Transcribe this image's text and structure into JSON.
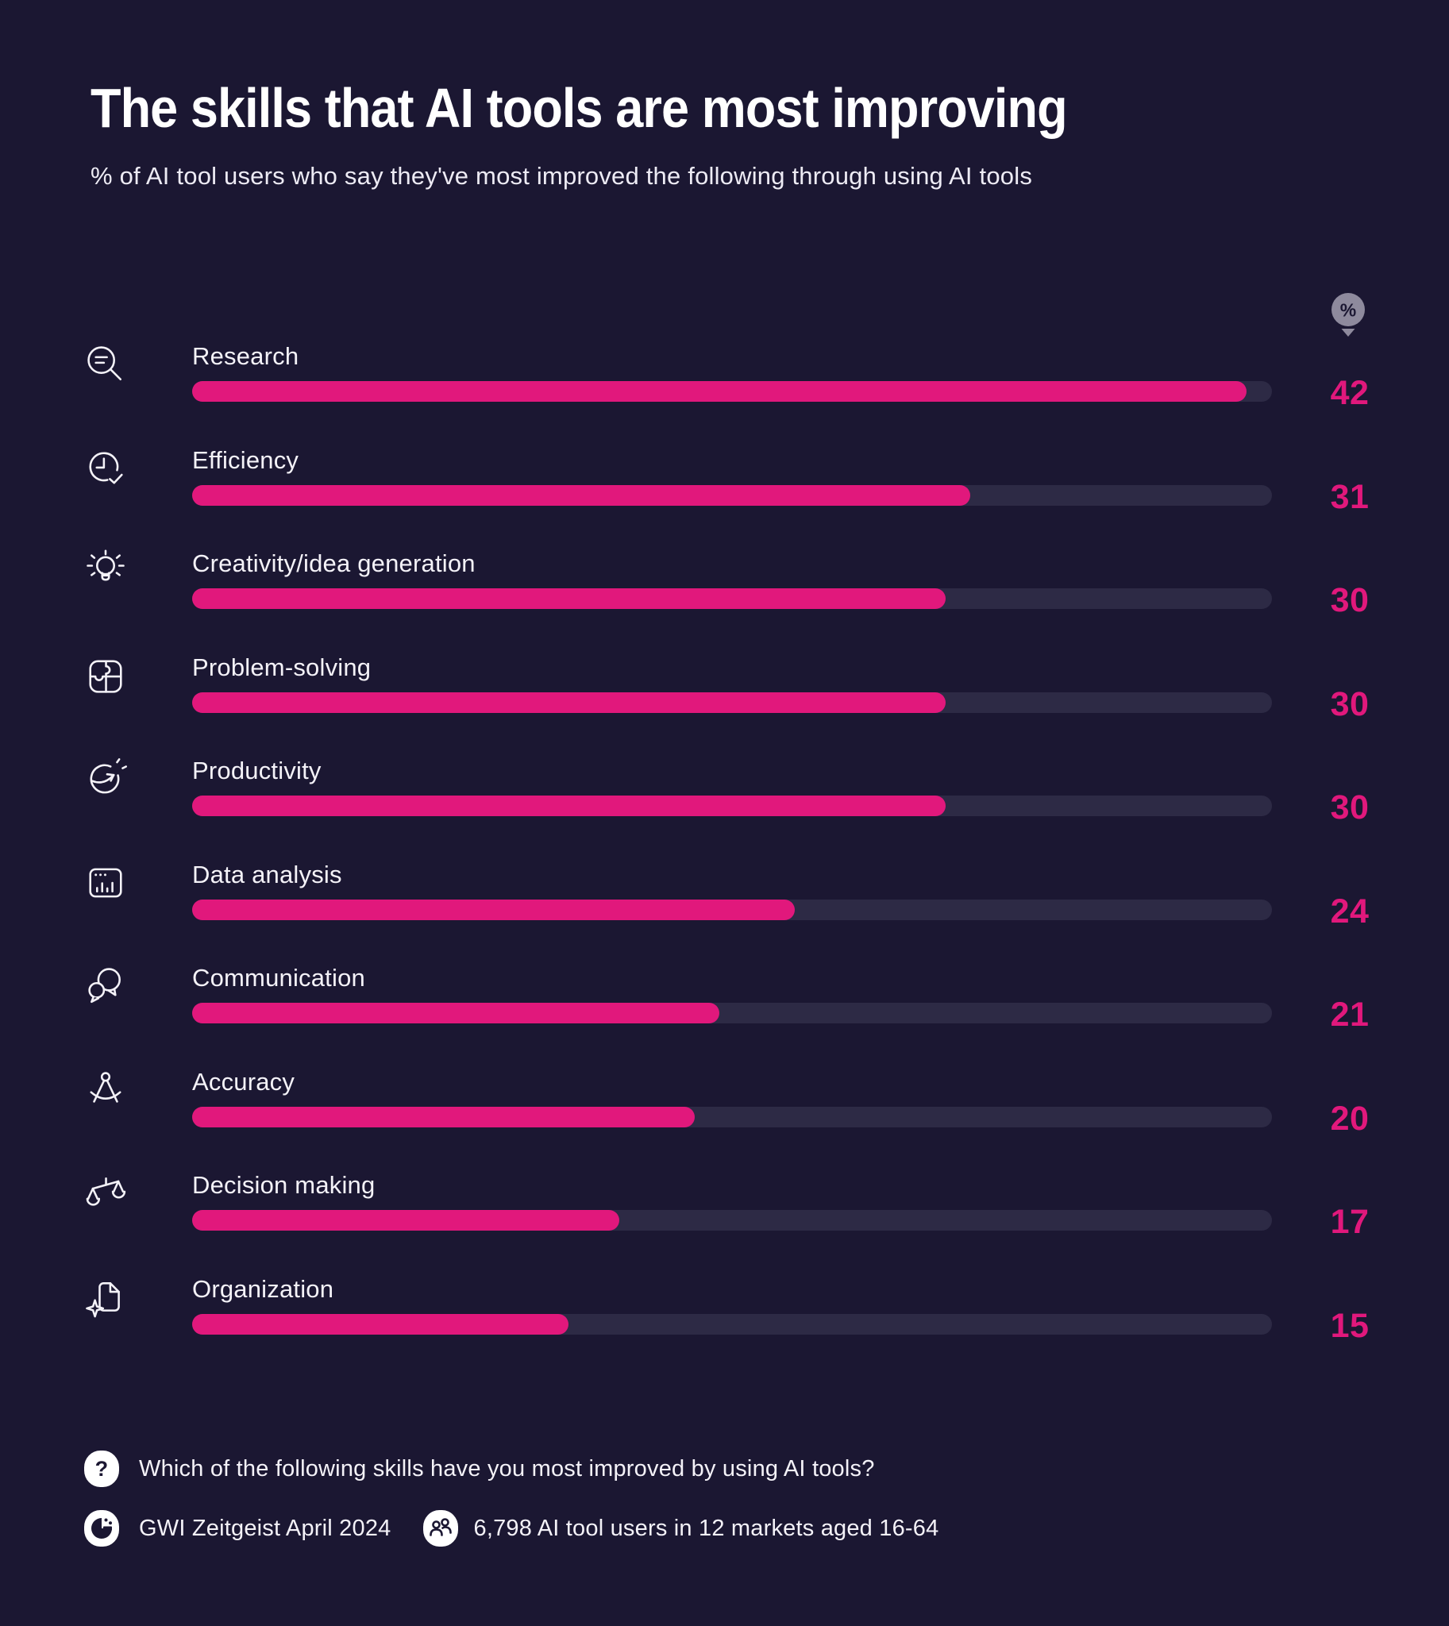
{
  "title": "The skills that AI tools are most improving",
  "subtitle": "% of AI tool users who say they've most improved the following through using AI tools",
  "unit_badge": {
    "label": "%"
  },
  "chart_data": {
    "type": "bar",
    "orientation": "horizontal",
    "title": "The skills that AI tools are most improving",
    "subtitle": "% of AI tool users who say they've most improved the following through using AI tools",
    "categories": [
      "Research",
      "Efficiency",
      "Creativity/idea generation",
      "Problem-solving",
      "Productivity",
      "Data analysis",
      "Communication",
      "Accuracy",
      "Decision making",
      "Organization"
    ],
    "values": [
      42,
      31,
      30,
      30,
      30,
      24,
      21,
      20,
      17,
      15
    ],
    "icons": [
      "magnifier-icon",
      "clock-check-icon",
      "lightbulb-icon",
      "puzzle-icon",
      "growth-arrow-icon",
      "chart-window-icon",
      "speech-bubbles-icon",
      "compass-icon",
      "scales-icon",
      "document-sparkle-icon"
    ],
    "unit": "%",
    "xlim": [
      0,
      43
    ],
    "grid": false,
    "legend": false,
    "value_labels_position": "right"
  },
  "footer": {
    "question_glyph": "?",
    "question": "Which of the following skills have you most improved by using AI tools?",
    "source": "GWI Zeitgeist April 2024",
    "audience": "6,798 AI tool users in 12 markets aged 16-64"
  },
  "colors": {
    "background": "#1b1732",
    "accent": "#e1187c",
    "track": "#2d2a45",
    "text": "#f4f2f8",
    "badge": "#8e8a9d"
  }
}
